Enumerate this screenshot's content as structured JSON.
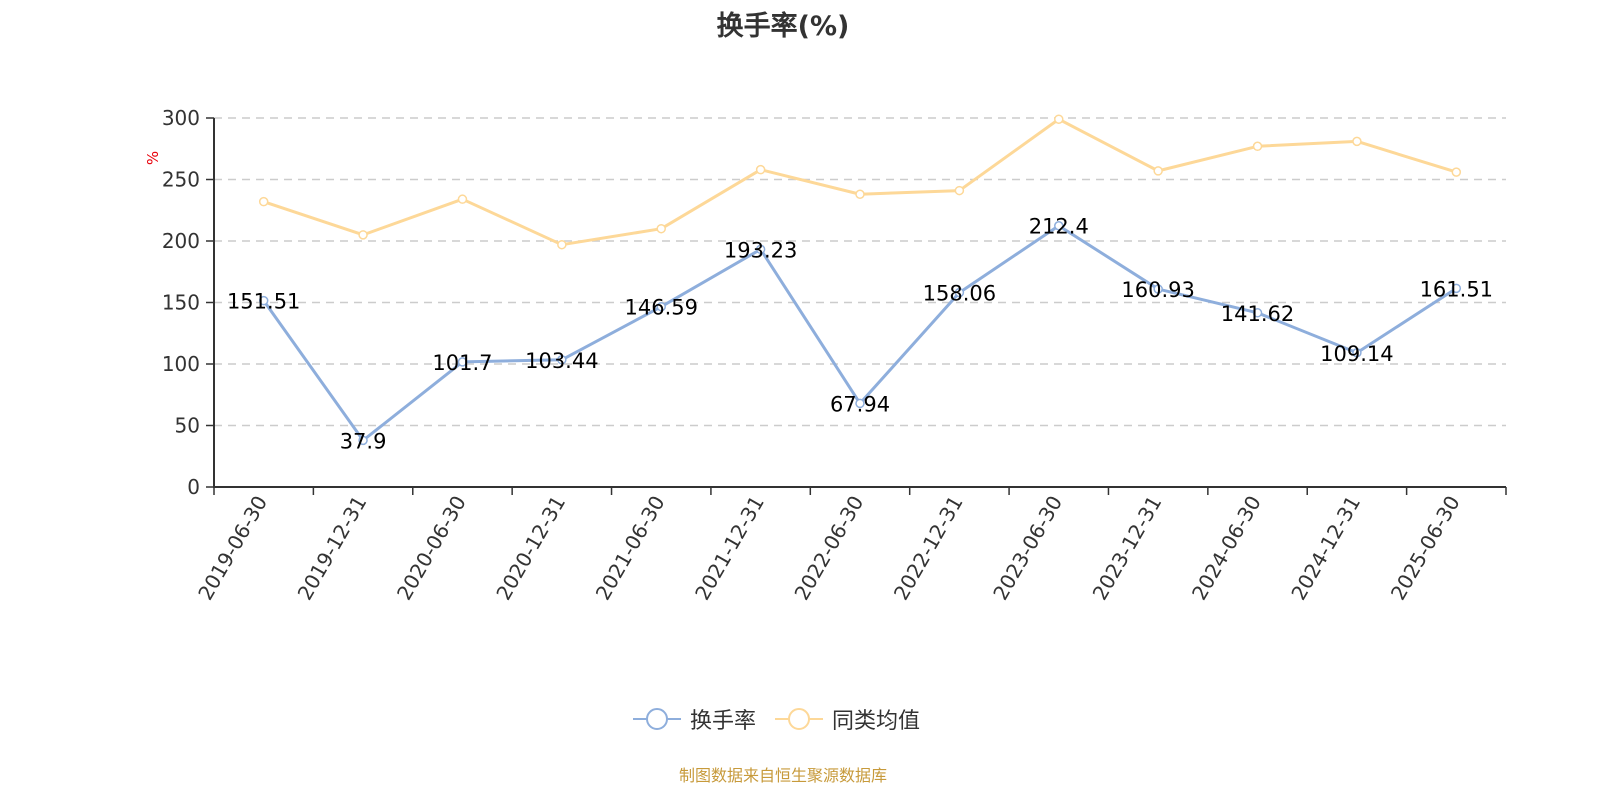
{
  "title": "换手率(%)",
  "y_unit_label": "%",
  "legend": [
    {
      "label": "换手率",
      "color": "#8eaedc"
    },
    {
      "label": "同类均值",
      "color": "#fdd898"
    }
  ],
  "footer": "制图数据来自恒生聚源数据库",
  "colors": {
    "series_turnover": "#8eaedc",
    "series_peer_avg": "#fdd898",
    "axis": "#333333",
    "grid": "#cccccc",
    "unit_label": "#e8000b",
    "footer": "#c79a3b"
  },
  "chart_data": {
    "type": "line",
    "title": "换手率(%)",
    "xlabel": "",
    "ylabel": "%",
    "ylim": [
      0,
      300
    ],
    "yticks": [
      0,
      50,
      100,
      150,
      200,
      250,
      300
    ],
    "grid": true,
    "legend_position": "bottom",
    "categories": [
      "2019-06-30",
      "2019-12-31",
      "2020-06-30",
      "2020-12-31",
      "2021-06-30",
      "2021-12-31",
      "2022-06-30",
      "2022-12-31",
      "2023-06-30",
      "2023-12-31",
      "2024-06-30",
      "2024-12-31",
      "2025-06-30"
    ],
    "series": [
      {
        "name": "换手率",
        "color": "#8eaedc",
        "show_labels": true,
        "values": [
          151.51,
          37.9,
          101.7,
          103.44,
          146.59,
          193.23,
          67.94,
          158.06,
          212.4,
          160.93,
          141.62,
          109.14,
          161.51
        ]
      },
      {
        "name": "同类均值",
        "color": "#fdd898",
        "show_labels": false,
        "values": [
          232,
          205,
          234,
          197,
          210,
          258,
          238,
          241,
          299,
          257,
          277,
          281,
          256
        ]
      }
    ]
  }
}
